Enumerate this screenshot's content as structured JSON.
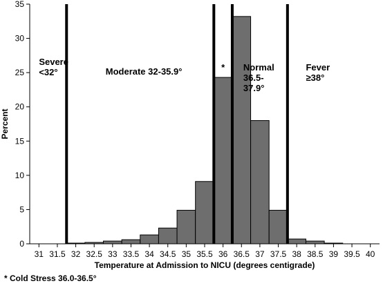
{
  "chart_data": {
    "type": "bar",
    "title": "",
    "xlabel": "Temperature at Admission to NICU (degrees centigrade)",
    "ylabel": "Percent",
    "xlim": [
      30.75,
      40.25
    ],
    "ylim": [
      0,
      35
    ],
    "x_ticks": [
      31,
      31.5,
      32,
      32.5,
      33,
      33.5,
      34,
      34.5,
      35,
      35.5,
      36,
      36.5,
      37,
      37.5,
      38,
      38.5,
      39,
      39.5,
      40
    ],
    "x_tick_labels": [
      "31",
      "31.5",
      "32",
      "32.5",
      "33",
      "33.5",
      "34",
      "34.5",
      "35",
      "35.5",
      "36",
      "36.5",
      "37",
      "37.5",
      "38",
      "38.5",
      "39",
      "39.5",
      "40"
    ],
    "y_ticks": [
      0,
      5,
      10,
      15,
      20,
      25,
      30,
      35
    ],
    "y_tick_labels": [
      "0",
      "5",
      "10",
      "15",
      "20",
      "25",
      "30",
      "35"
    ],
    "bins": [
      {
        "x": 32.0,
        "value": 0.1
      },
      {
        "x": 32.5,
        "value": 0.2
      },
      {
        "x": 33.0,
        "value": 0.4
      },
      {
        "x": 33.5,
        "value": 0.6
      },
      {
        "x": 34.0,
        "value": 1.3
      },
      {
        "x": 34.5,
        "value": 2.3
      },
      {
        "x": 35.0,
        "value": 4.9
      },
      {
        "x": 35.5,
        "value": 9.1
      },
      {
        "x": 36.0,
        "value": 24.3
      },
      {
        "x": 36.5,
        "value": 33.2
      },
      {
        "x": 37.0,
        "value": 18.0
      },
      {
        "x": 37.5,
        "value": 4.9
      },
      {
        "x": 38.0,
        "value": 0.7
      },
      {
        "x": 38.5,
        "value": 0.4
      },
      {
        "x": 39.0,
        "value": 0.1
      }
    ],
    "bin_width": 0.5,
    "bar_color": "#6e6e6e",
    "bar_edge_color": "#000000",
    "reference_lines": [
      31.75,
      35.75,
      36.25,
      37.75
    ],
    "region_labels": [
      {
        "lines": [
          "Severe",
          "<32°"
        ],
        "x": 31.0,
        "y": 26.1,
        "anchor": "start"
      },
      {
        "lines": [
          "Moderate 32-35.9°"
        ],
        "x": 33.85,
        "y": 24.7,
        "anchor": "middle"
      },
      {
        "lines": [
          "*"
        ],
        "x": 36.0,
        "y": 25.3,
        "anchor": "middle"
      },
      {
        "lines": [
          "Normal",
          "36.5-",
          "37.9°"
        ],
        "x": 36.55,
        "y": 25.3,
        "anchor": "start"
      },
      {
        "lines": [
          "Fever",
          "≥38°"
        ],
        "x": 38.25,
        "y": 25.3,
        "anchor": "start"
      }
    ]
  },
  "footnote": "* Cold Stress 36.0-36.5°"
}
